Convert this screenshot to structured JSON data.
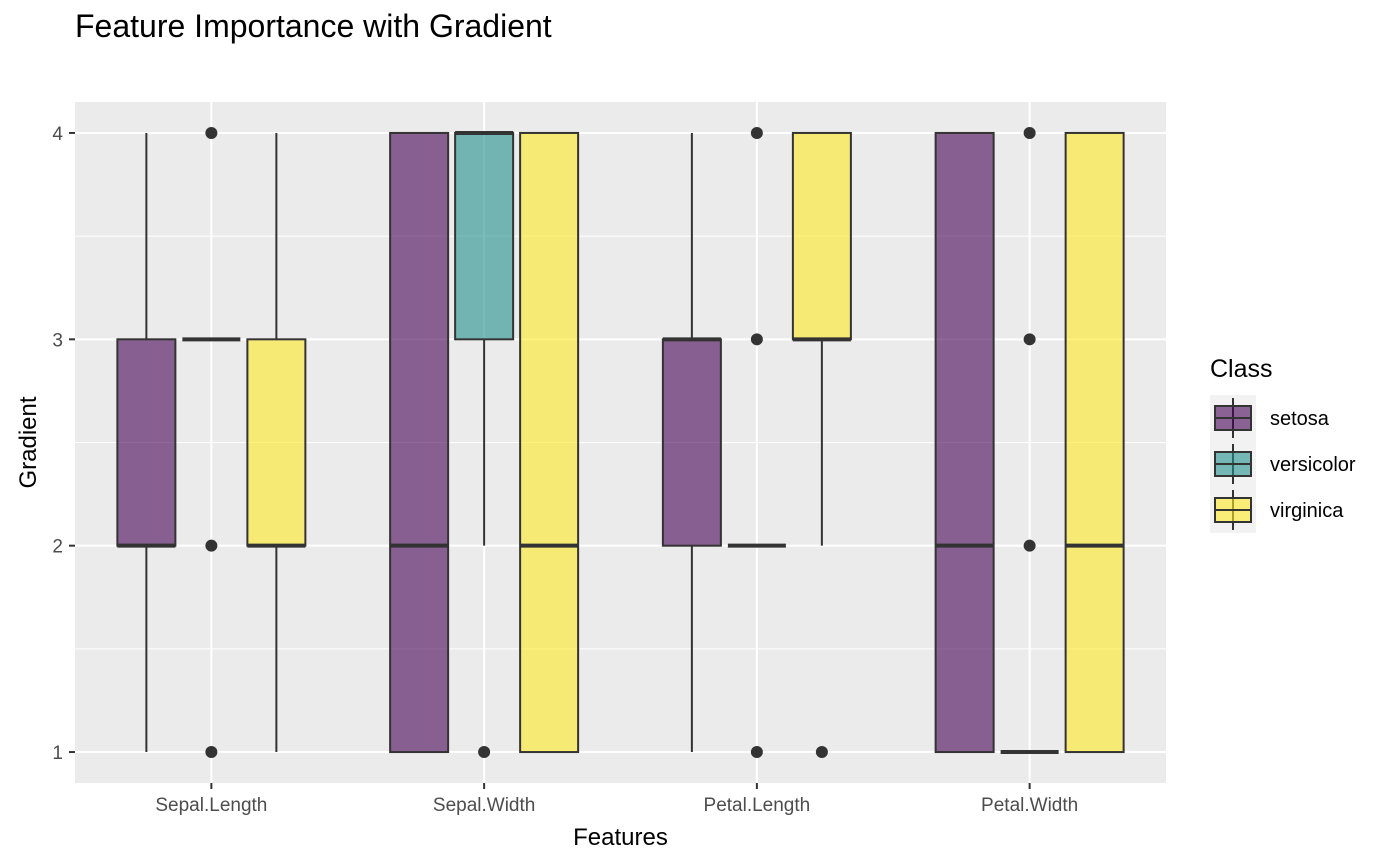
{
  "chart_data": {
    "type": "boxplot",
    "title": "Feature Importance with Gradient",
    "xlabel": "Features",
    "ylabel": "Gradient",
    "categories": [
      "Sepal.Length",
      "Sepal.Width",
      "Petal.Length",
      "Petal.Width"
    ],
    "ylim": [
      0.85,
      4.15
    ],
    "yticks": [
      1,
      2,
      3,
      4
    ],
    "grid": true,
    "legend": {
      "title": "Class",
      "placement": "right"
    },
    "series": [
      {
        "name": "setosa",
        "color": "#440154",
        "boxes": [
          {
            "min": 1,
            "q1": 2,
            "median": 2,
            "q3": 3,
            "max": 4,
            "outliers": []
          },
          {
            "min": 1,
            "q1": 1,
            "median": 2,
            "q3": 4,
            "max": 4,
            "outliers": []
          },
          {
            "min": 1,
            "q1": 2,
            "median": 3,
            "q3": 3,
            "max": 4,
            "outliers": []
          },
          {
            "min": 1,
            "q1": 1,
            "median": 2,
            "q3": 4,
            "max": 4,
            "outliers": []
          }
        ]
      },
      {
        "name": "versicolor",
        "color": "#21908C",
        "boxes": [
          {
            "min": 3,
            "q1": 3,
            "median": 3,
            "q3": 3,
            "max": 3,
            "outliers": [
              1,
              2,
              4
            ]
          },
          {
            "min": 2,
            "q1": 3,
            "median": 4,
            "q3": 4,
            "max": 4,
            "outliers": [
              1
            ]
          },
          {
            "min": 2,
            "q1": 2,
            "median": 2,
            "q3": 2,
            "max": 2,
            "outliers": [
              1,
              3,
              4
            ]
          },
          {
            "min": 1,
            "q1": 1,
            "median": 1,
            "q3": 1,
            "max": 1,
            "outliers": [
              2,
              3,
              4
            ]
          }
        ]
      },
      {
        "name": "virginica",
        "color": "#FDE725",
        "boxes": [
          {
            "min": 1,
            "q1": 2,
            "median": 2,
            "q3": 3,
            "max": 4,
            "outliers": []
          },
          {
            "min": 1,
            "q1": 1,
            "median": 2,
            "q3": 4,
            "max": 4,
            "outliers": []
          },
          {
            "min": 2,
            "q1": 3,
            "median": 3,
            "q3": 4,
            "max": 4,
            "outliers": [
              1
            ]
          },
          {
            "min": 1,
            "q1": 1,
            "median": 2,
            "q3": 4,
            "max": 4,
            "outliers": []
          }
        ]
      }
    ]
  }
}
